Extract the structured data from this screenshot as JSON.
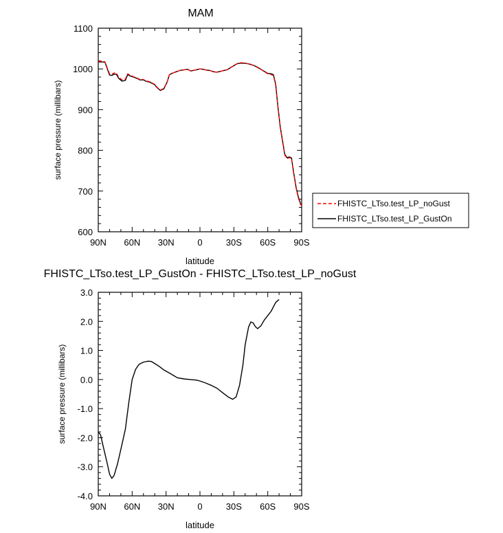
{
  "chart_data": [
    {
      "type": "line",
      "title": "MAM",
      "xlabel": "latitude",
      "ylabel": "surface pressure (millibars)",
      "x_range": [
        90,
        -90
      ],
      "ylim": [
        600,
        1100
      ],
      "x_ticks": [
        90,
        60,
        30,
        0,
        -30,
        -60,
        -90
      ],
      "x_tick_labels": [
        "90N",
        "60N",
        "30N",
        "0",
        "30S",
        "60S",
        "90S"
      ],
      "y_ticks": [
        600,
        700,
        800,
        900,
        1000,
        1100
      ],
      "y_tick_labels": [
        "600",
        "700",
        "800",
        "900",
        "1000",
        "1100"
      ],
      "grid": false,
      "legend_position": "right, outside plot area, lower",
      "series": [
        {
          "name": "FHISTC_LTso.test_LP_noGust",
          "color": "#ff0000",
          "dash": "dashed",
          "points": [
            [
              90,
              1019
            ],
            [
              86,
              1019
            ],
            [
              84,
              1017
            ],
            [
              82,
              1002
            ],
            [
              80,
              988
            ],
            [
              78,
              987
            ],
            [
              76,
              990
            ],
            [
              74,
              990
            ],
            [
              72,
              980
            ],
            [
              69,
              973
            ],
            [
              66,
              975
            ],
            [
              64,
              988
            ],
            [
              62,
              985
            ],
            [
              59,
              981
            ],
            [
              56,
              978
            ],
            [
              53,
              974
            ],
            [
              50,
              974
            ],
            [
              48,
              971
            ],
            [
              44,
              968
            ],
            [
              40,
              962
            ],
            [
              38,
              955
            ],
            [
              35,
              948
            ],
            [
              32,
              952
            ],
            [
              29,
              968
            ],
            [
              27,
              986
            ],
            [
              24,
              990
            ],
            [
              21,
              993
            ],
            [
              18,
              996
            ],
            [
              14,
              998
            ],
            [
              11,
              999
            ],
            [
              8,
              995
            ],
            [
              5,
              997
            ],
            [
              3,
              998
            ],
            [
              0,
              1000
            ],
            [
              -3,
              999
            ],
            [
              -6,
              997
            ],
            [
              -9,
              996
            ],
            [
              -12,
              993
            ],
            [
              -15,
              992
            ],
            [
              -18,
              994
            ],
            [
              -21,
              996
            ],
            [
              -24,
              998
            ],
            [
              -27,
              1003
            ],
            [
              -30,
              1008
            ],
            [
              -33,
              1013
            ],
            [
              -36,
              1015
            ],
            [
              -39,
              1015
            ],
            [
              -42,
              1013
            ],
            [
              -45,
              1011
            ],
            [
              -48,
              1008
            ],
            [
              -51,
              1003
            ],
            [
              -54,
              999
            ],
            [
              -57,
              993
            ],
            [
              -60,
              988
            ],
            [
              -63,
              986
            ],
            [
              -65,
              984
            ],
            [
              -67,
              960
            ],
            [
              -69,
              905
            ],
            [
              -71,
              856
            ],
            [
              -73,
              823
            ],
            [
              -75,
              789
            ],
            [
              -77,
              780
            ],
            [
              -79,
              782
            ],
            [
              -81,
              779
            ],
            [
              -83,
              742
            ],
            [
              -85,
              708
            ],
            [
              -87,
              683
            ],
            [
              -89,
              667
            ],
            [
              -90,
              664
            ]
          ]
        },
        {
          "name": "FHISTC_LTso.test_LP_GustOn",
          "color": "#000000",
          "dash": "solid",
          "points": [
            [
              90,
              1017
            ],
            [
              86,
              1017
            ],
            [
              84,
              1016
            ],
            [
              82,
              1000
            ],
            [
              80,
              985
            ],
            [
              78,
              984
            ],
            [
              76,
              987
            ],
            [
              74,
              987
            ],
            [
              72,
              977
            ],
            [
              69,
              970
            ],
            [
              66,
              972
            ],
            [
              64,
              986
            ],
            [
              62,
              983
            ],
            [
              59,
              980
            ],
            [
              56,
              977
            ],
            [
              53,
              973
            ],
            [
              50,
              973
            ],
            [
              48,
              970
            ],
            [
              44,
              967
            ],
            [
              40,
              961
            ],
            [
              38,
              954
            ],
            [
              35,
              947
            ],
            [
              32,
              951
            ],
            [
              29,
              968
            ],
            [
              27,
              986
            ],
            [
              24,
              990
            ],
            [
              21,
              993
            ],
            [
              18,
              996
            ],
            [
              14,
              998
            ],
            [
              11,
              999
            ],
            [
              8,
              995
            ],
            [
              5,
              997
            ],
            [
              3,
              998
            ],
            [
              0,
              1000
            ],
            [
              -3,
              999
            ],
            [
              -6,
              997
            ],
            [
              -9,
              996
            ],
            [
              -12,
              993
            ],
            [
              -15,
              992
            ],
            [
              -18,
              994
            ],
            [
              -21,
              996
            ],
            [
              -24,
              998
            ],
            [
              -27,
              1003
            ],
            [
              -30,
              1008
            ],
            [
              -33,
              1013
            ],
            [
              -36,
              1014
            ],
            [
              -39,
              1014
            ],
            [
              -42,
              1013
            ],
            [
              -45,
              1011
            ],
            [
              -48,
              1008
            ],
            [
              -51,
              1004
            ],
            [
              -54,
              999
            ],
            [
              -57,
              994
            ],
            [
              -60,
              989
            ],
            [
              -63,
              988
            ],
            [
              -65,
              986
            ],
            [
              -67,
              962
            ],
            [
              -69,
              907
            ],
            [
              -71,
              858
            ],
            [
              -73,
              825
            ],
            [
              -75,
              791
            ],
            [
              -77,
              782
            ],
            [
              -79,
              784
            ],
            [
              -81,
              781
            ],
            [
              -83,
              744
            ],
            [
              -85,
              710
            ],
            [
              -87,
              686
            ],
            [
              -89,
              669
            ],
            [
              -90,
              667
            ]
          ]
        }
      ]
    },
    {
      "type": "line",
      "title": "FHISTC_LTso.test_LP_GustOn - FHISTC_LTso.test_LP_noGust",
      "xlabel": "latitude",
      "ylabel": "surface pressure (millibars)",
      "x_range": [
        90,
        -90
      ],
      "ylim": [
        -4.0,
        3.0
      ],
      "x_ticks": [
        90,
        60,
        30,
        0,
        -30,
        -60,
        -90
      ],
      "x_tick_labels": [
        "90N",
        "60N",
        "30N",
        "0",
        "30S",
        "60S",
        "90S"
      ],
      "y_ticks": [
        -4.0,
        -3.0,
        -2.0,
        -1.0,
        0.0,
        1.0,
        2.0,
        3.0
      ],
      "y_tick_labels": [
        "-4.0",
        "-3.0",
        "-2.0",
        "-1.0",
        "0.0",
        "1.0",
        "2.0",
        "3.0"
      ],
      "grid": false,
      "series": [
        {
          "color": "#000000",
          "dash": "solid",
          "points": [
            [
              90,
              -1.8
            ],
            [
              88,
              -1.9
            ],
            [
              85,
              -2.4
            ],
            [
              82,
              -2.9
            ],
            [
              80,
              -3.25
            ],
            [
              78,
              -3.4
            ],
            [
              76,
              -3.3
            ],
            [
              73,
              -2.9
            ],
            [
              70,
              -2.4
            ],
            [
              66,
              -1.7
            ],
            [
              63,
              -0.8
            ],
            [
              60,
              0.0
            ],
            [
              57,
              0.35
            ],
            [
              54,
              0.52
            ],
            [
              50,
              0.6
            ],
            [
              46,
              0.63
            ],
            [
              43,
              0.62
            ],
            [
              40,
              0.55
            ],
            [
              36,
              0.45
            ],
            [
              32,
              0.33
            ],
            [
              26,
              0.2
            ],
            [
              20,
              0.06
            ],
            [
              14,
              0.02
            ],
            [
              8,
              0.0
            ],
            [
              3,
              -0.02
            ],
            [
              0,
              -0.05
            ],
            [
              -5,
              -0.12
            ],
            [
              -10,
              -0.2
            ],
            [
              -15,
              -0.3
            ],
            [
              -20,
              -0.45
            ],
            [
              -25,
              -0.6
            ],
            [
              -29,
              -0.68
            ],
            [
              -32,
              -0.6
            ],
            [
              -35,
              -0.2
            ],
            [
              -38,
              0.5
            ],
            [
              -40,
              1.2
            ],
            [
              -43,
              1.8
            ],
            [
              -45,
              1.98
            ],
            [
              -47,
              1.95
            ],
            [
              -49,
              1.82
            ],
            [
              -51,
              1.75
            ],
            [
              -54,
              1.85
            ],
            [
              -57,
              2.05
            ],
            [
              -60,
              2.2
            ],
            [
              -63,
              2.35
            ],
            [
              -65,
              2.5
            ],
            [
              -67,
              2.65
            ],
            [
              -69,
              2.72
            ],
            [
              -70,
              2.75
            ]
          ]
        }
      ]
    }
  ]
}
